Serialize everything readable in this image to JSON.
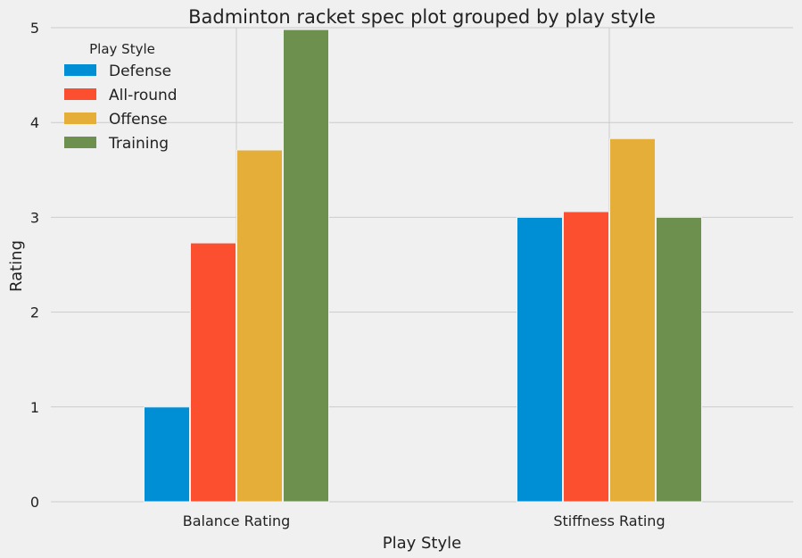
{
  "chart_data": {
    "type": "bar",
    "title": "Badminton racket spec plot grouped by play style",
    "xlabel": "Play Style",
    "ylabel": "Rating",
    "categories": [
      "Balance Rating",
      "Stiffness Rating"
    ],
    "ylim": [
      0,
      5
    ],
    "yticks": [
      "0",
      "1",
      "2",
      "3",
      "4",
      "5"
    ],
    "grid": true,
    "legend": {
      "title": "Play Style",
      "position": "top-left"
    },
    "series": [
      {
        "name": "Defense",
        "values": [
          1.0,
          3.0
        ],
        "color": "#008fd5"
      },
      {
        "name": "All-round",
        "values": [
          2.73,
          3.06
        ],
        "color": "#fc4f30"
      },
      {
        "name": "Offense",
        "values": [
          3.71,
          3.83
        ],
        "color": "#e5ae38"
      },
      {
        "name": "Training",
        "values": [
          4.98,
          3.0
        ],
        "color": "#6d904f"
      }
    ]
  }
}
